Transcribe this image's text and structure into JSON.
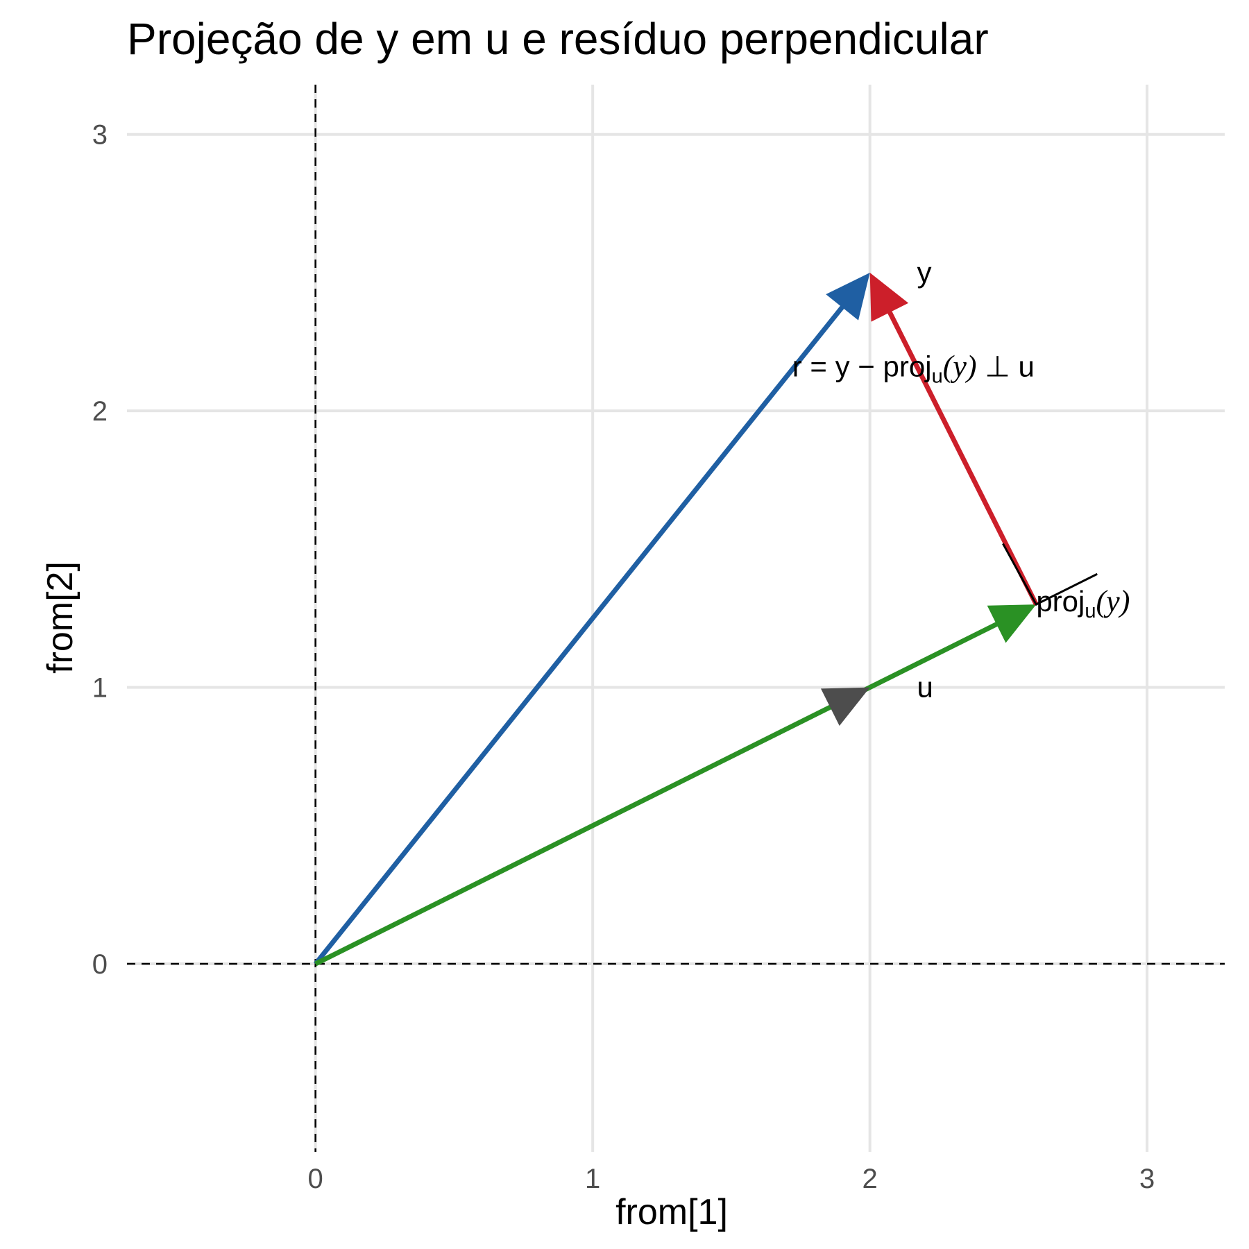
{
  "chart_data": {
    "type": "vector-plot",
    "title": "Projeção de y em u e resíduo perpendicular",
    "xlabel": "from[1]",
    "ylabel": "from[2]",
    "xlim": [
      -0.68,
      3.28
    ],
    "ylim": [
      -0.68,
      3.18
    ],
    "x_ticks": [
      0,
      1,
      2,
      3
    ],
    "y_ticks": [
      0,
      1,
      2,
      3
    ],
    "grid": true,
    "reference_lines": {
      "x": 0,
      "y": 0,
      "style": "dashed"
    },
    "vectors": [
      {
        "id": "y",
        "from": [
          0,
          0
        ],
        "to": [
          2,
          2.5
        ],
        "color": "#1f5fa3"
      },
      {
        "id": "u",
        "from": [
          0,
          0
        ],
        "to": [
          2,
          1
        ],
        "color": "#4d4d4d"
      },
      {
        "id": "proj",
        "from": [
          0,
          0
        ],
        "to": [
          2.6,
          1.3
        ],
        "color": "#2a9124"
      },
      {
        "id": "residual",
        "from": [
          2.6,
          1.3
        ],
        "to": [
          2,
          2.5
        ],
        "color": "#cc1f2a"
      }
    ],
    "labels": [
      {
        "id": "y",
        "at": [
          2.17,
          2.5
        ],
        "parts": [
          {
            "t": "y"
          }
        ]
      },
      {
        "id": "u",
        "at": [
          2.17,
          1.0
        ],
        "parts": [
          {
            "t": "u"
          }
        ]
      },
      {
        "id": "proj",
        "at": [
          2.6,
          1.31
        ],
        "parts": [
          {
            "t": "proj"
          },
          {
            "t": "u",
            "sub": true
          },
          {
            "t": "(y)",
            "italic": true
          }
        ]
      },
      {
        "id": "residual",
        "at": [
          1.72,
          2.16
        ],
        "parts": [
          {
            "t": "r  =  y"
          },
          {
            "t": " − "
          },
          {
            "t": "proj"
          },
          {
            "t": "u",
            "sub": true
          },
          {
            "t": "(y)",
            "italic": true
          },
          {
            "t": "   ⊥   u"
          }
        ]
      }
    ],
    "right_angle_marker": {
      "points": [
        [
          2.48,
          1.52
        ],
        [
          2.6,
          1.3
        ],
        [
          2.82,
          1.41
        ]
      ],
      "color": "#000000"
    }
  }
}
